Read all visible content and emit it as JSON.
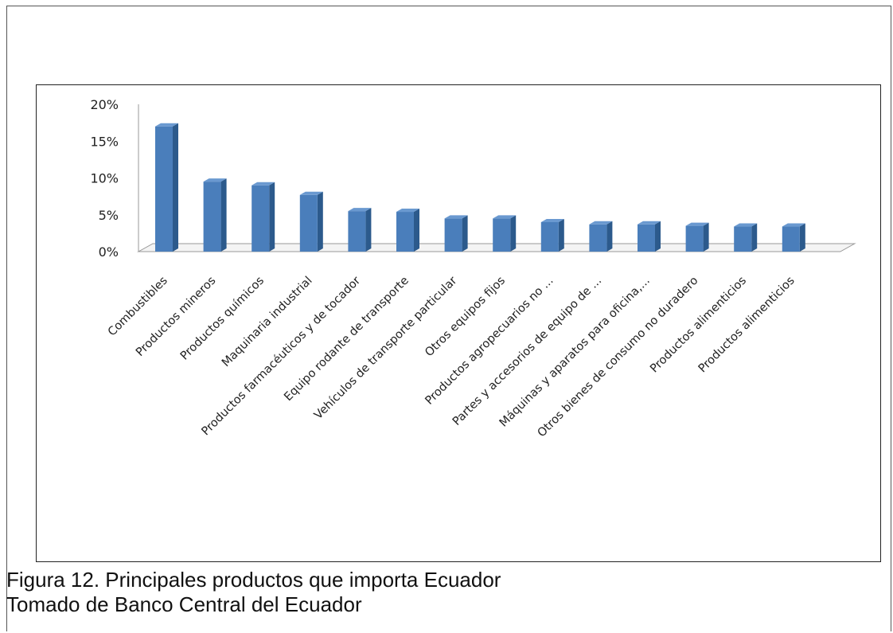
{
  "colors": {
    "bar_front": "#4a7ebb",
    "bar_side": "#2c5a8c",
    "bar_top": "#6a99d0",
    "axis": "#999999",
    "text": "#222222"
  },
  "caption": {
    "line1": "Figura 12. Principales productos que importa Ecuador",
    "line2": "Tomado de Banco Central del Ecuador"
  },
  "chart_data": {
    "type": "bar",
    "style": "3d-column",
    "title": "",
    "xlabel": "",
    "ylabel": "",
    "ylim": [
      0,
      20
    ],
    "yticks": [
      "0%",
      "5%",
      "10%",
      "15%",
      "20%"
    ],
    "grid": false,
    "legend": "none",
    "categories": [
      "Combustibles",
      "Productos mineros",
      "Productos químicos",
      "Maquinaria industrial",
      "Productos farmacéuticos  y de tocador",
      "Equipo rodante de transporte",
      "Vehículos de transporte particular",
      "Otros equipos fijos",
      "Productos agropecuarios no ...",
      "Partes y  accesorios de equipo de ...",
      "Máquinas y aparatos para oficina,...",
      "Otros bienes de consumo  no duradero",
      "Productos alimenticios",
      "Productos alimenticios"
    ],
    "values": [
      17,
      9.5,
      9,
      7.7,
      5.5,
      5.4,
      4.5,
      4.5,
      4,
      3.7,
      3.7,
      3.5,
      3.4,
      3.4
    ]
  }
}
